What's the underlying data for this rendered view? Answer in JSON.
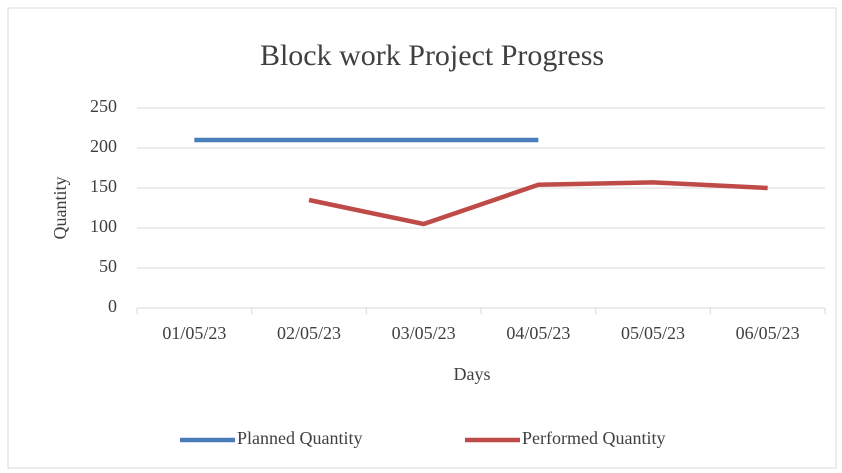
{
  "chart_data": {
    "type": "line",
    "title": "Block work Project Progress",
    "x_label": "Days",
    "y_label": "Quantity",
    "categories": [
      "01/05/23",
      "02/05/23",
      "03/05/23",
      "04/05/23",
      "05/05/23",
      "06/05/23"
    ],
    "series": [
      {
        "name": "Planned Quantity",
        "color": "#4a7ebb",
        "values": [
          210,
          210,
          210,
          210,
          null,
          null
        ]
      },
      {
        "name": "Performed Quantity",
        "color": "#be4b48",
        "values": [
          null,
          135,
          105,
          154,
          157,
          150
        ]
      }
    ],
    "ylim": [
      0,
      250
    ],
    "yticks": [
      0,
      50,
      100,
      150,
      200,
      250
    ],
    "grid": true,
    "legend": "bottom"
  }
}
